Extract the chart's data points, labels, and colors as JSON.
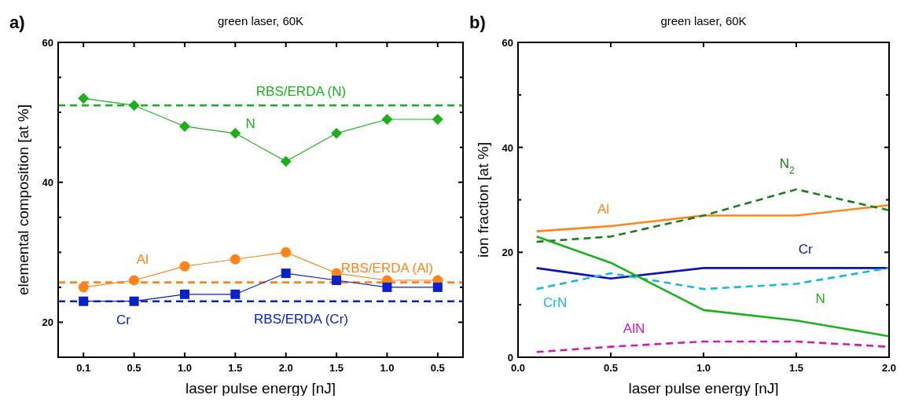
{
  "chart_data": [
    {
      "type": "line",
      "title": "green laser, 60K",
      "xlabel": "laser pulse energy [nJ]",
      "ylabel": "elemental composition [at %]",
      "annotations": [
        "a)"
      ],
      "categories": [
        "0.1",
        "0.5",
        "1.0",
        "1.5",
        "2.0",
        "1.5",
        "1.0",
        "0.5"
      ],
      "ylim": [
        15,
        60
      ],
      "yticks": [
        20,
        {
          "value": 25,
          "label": null
        },
        {
          "value": 30,
          "label": null
        },
        {
          "value": 35,
          "label": null
        },
        40,
        {
          "value": 45,
          "label": null
        },
        {
          "value": 50,
          "label": null
        },
        {
          "value": 55,
          "label": null
        },
        60
      ],
      "grid": false,
      "legend": false,
      "series": [
        {
          "name": "N",
          "color": "#1cb01c",
          "marker": "diamond",
          "line_style": "solid",
          "values": [
            52,
            51,
            48,
            47,
            43,
            47,
            49,
            49
          ]
        },
        {
          "name": "Al",
          "color": "#ff8419",
          "marker": "circle",
          "line_style": "solid",
          "values": [
            25,
            26,
            28,
            29,
            30,
            27,
            26,
            26
          ]
        },
        {
          "name": "Cr",
          "color": "#0a20c8",
          "marker": "square",
          "line_style": "solid",
          "values": [
            23,
            23,
            24,
            24,
            27,
            26,
            25,
            25
          ]
        }
      ],
      "ref_lines": [
        {
          "axis": "y",
          "value": 51,
          "label": "RBS/ERDA (N)",
          "color": "#1cb01c",
          "line_style": "dashed"
        },
        {
          "axis": "y",
          "value": 25.7,
          "label": "RBS/ERDA (Al)",
          "color": "#ff8419",
          "line_style": "dashed"
        },
        {
          "axis": "y",
          "value": 23,
          "label": "RBS/ERDA (Cr)",
          "color": "#0a20c8",
          "line_style": "dashed"
        }
      ]
    },
    {
      "type": "line",
      "title": "green laser, 60K",
      "xlabel": "laser pulse energy [nJ]",
      "ylabel": "ion fraction [at %]",
      "annotations": [
        "b)"
      ],
      "x": [
        0.1,
        0.5,
        1.0,
        1.5,
        2.0
      ],
      "xlim": [
        0,
        2
      ],
      "xticks": [
        {
          "value": 0,
          "label": "0.0"
        },
        0.5,
        {
          "value": 1,
          "label": "1.0"
        },
        1.5,
        {
          "value": 2,
          "label": "2.0"
        }
      ],
      "ylim": [
        0,
        60
      ],
      "yticks": [
        0,
        {
          "value": 10,
          "label": null
        },
        20,
        {
          "value": 30,
          "label": null
        },
        40,
        {
          "value": 50,
          "label": null
        },
        60
      ],
      "grid": false,
      "legend": false,
      "marker": "none",
      "series": [
        {
          "name": "Al",
          "color": "#ff8419",
          "line_style": "solid",
          "values": [
            24,
            25,
            27,
            27,
            29
          ]
        },
        {
          "name": "N$_{2}$",
          "color": "#1e7d1e",
          "line_style": "dashed",
          "values": [
            22,
            23,
            27,
            32,
            28
          ]
        },
        {
          "name": "Cr",
          "color": "#0a14b4",
          "line_style": "solid",
          "values": [
            17,
            15,
            17,
            17,
            17
          ]
        },
        {
          "name": "CrN",
          "color": "#1ab8e0",
          "line_style": "dashed",
          "values": [
            13,
            16,
            13,
            14,
            17
          ]
        },
        {
          "name": "N",
          "color": "#1cb01c",
          "line_style": "solid",
          "values": [
            23,
            18,
            9,
            7,
            4
          ]
        },
        {
          "name": "AlN",
          "color": "#d01ab4",
          "line_style": "dashed",
          "values": [
            1,
            2,
            3,
            3,
            2
          ]
        }
      ]
    }
  ]
}
